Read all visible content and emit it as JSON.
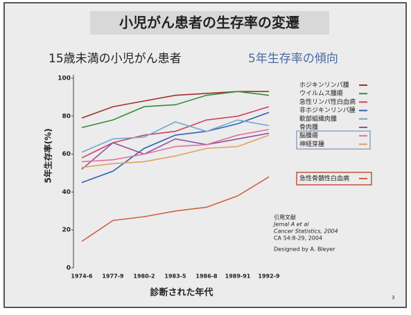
{
  "chart_data": {
    "type": "line",
    "title": "小児がん患者の生存率の変遷",
    "subtitle": "15歳未満の小児がん患者",
    "subtitle2": "5年生存率の傾向",
    "y_label": "5年生存率(%)",
    "x_label": "診断された年代",
    "categories": [
      "1974-6",
      "1977-9",
      "1980-2",
      "1983-5",
      "1986-8",
      "1989-91",
      "1992-9"
    ],
    "ylim": [
      0,
      100
    ],
    "yticks": [
      0,
      20,
      40,
      60,
      80,
      100
    ],
    "series": [
      {
        "name": "ホジキンリンパ腫",
        "color": "#a0302a",
        "values": [
          79,
          85,
          88,
          91,
          92,
          93,
          93
        ]
      },
      {
        "name": "ウイルムス腫瘍",
        "color": "#3a8a3a",
        "values": [
          74,
          78,
          85,
          86,
          91,
          93,
          91
        ]
      },
      {
        "name": "急性リンパ性白血病",
        "color": "#d04060",
        "values": [
          58,
          66,
          70,
          72,
          78,
          80,
          85
        ]
      },
      {
        "name": "非ホジキンリンパ腫",
        "color": "#3060b0",
        "values": [
          45,
          51,
          63,
          70,
          72,
          76,
          82
        ]
      },
      {
        "name": "軟部組織肉腫",
        "color": "#70a8d0",
        "values": [
          61,
          68,
          69,
          77,
          72,
          78,
          75
        ]
      },
      {
        "name": "骨肉腫",
        "color": "#9050a0",
        "values": [
          52,
          66,
          60,
          68,
          65,
          68,
          71
        ]
      },
      {
        "name": "脳腫瘍",
        "color": "#e070a0",
        "values": [
          56,
          57,
          60,
          64,
          65,
          70,
          73
        ]
      },
      {
        "name": "神経芽腫",
        "color": "#e0a060",
        "values": [
          53,
          55,
          56,
          59,
          63,
          64,
          70
        ]
      },
      {
        "name": "急性骨髄性白血病",
        "color": "#d06040",
        "values": [
          14,
          25,
          27,
          30,
          32,
          38,
          48
        ]
      }
    ],
    "source": [
      "引用文献",
      "Jemal A et al",
      "Cancer Statistics, 2004",
      "CA 54:8-29, 2004"
    ],
    "designer": "Designed by A. Bleyer",
    "page_number": "3"
  }
}
